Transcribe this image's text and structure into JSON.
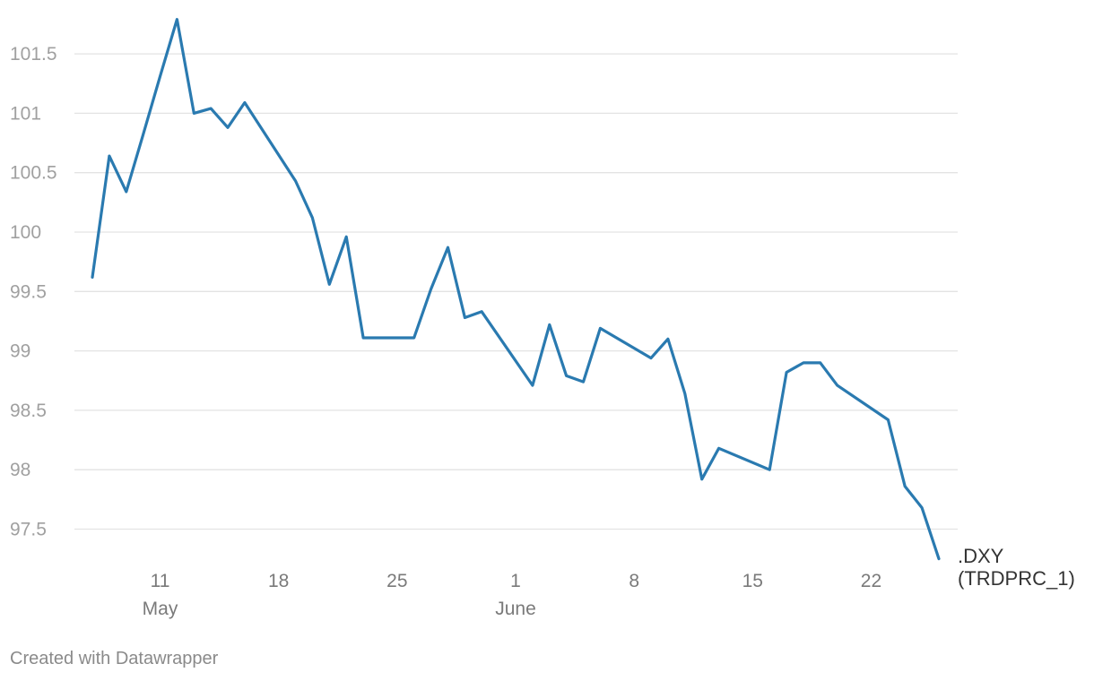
{
  "chart_data": {
    "type": "line",
    "title": "",
    "xlabel": "",
    "ylabel": "",
    "ylim": [
      97.3,
      101.8
    ],
    "grid": true,
    "y_ticks": [
      "97.5",
      "98",
      "98.5",
      "99",
      "99.5",
      "100",
      "100.5",
      "101",
      "101.5"
    ],
    "x_ticks": [
      {
        "day": "11",
        "month": "May",
        "date": "2020-05-11"
      },
      {
        "day": "18",
        "month": "",
        "date": "2020-05-18"
      },
      {
        "day": "25",
        "month": "",
        "date": "2020-05-25"
      },
      {
        "day": "1",
        "month": "June",
        "date": "2020-06-01"
      },
      {
        "day": "8",
        "month": "",
        "date": "2020-06-08"
      },
      {
        "day": "15",
        "month": "",
        "date": "2020-06-15"
      },
      {
        "day": "22",
        "month": "",
        "date": "2020-06-22"
      }
    ],
    "series": [
      {
        "name": ".DXY (TRDPRC_1)",
        "label_lines": [
          ".DXY",
          "(TRDPRC_1)"
        ],
        "color": "#2a7ab0",
        "points": [
          [
            "2020-05-07",
            99.62
          ],
          [
            "2020-05-08",
            100.64
          ],
          [
            "2020-05-09",
            100.34
          ],
          [
            "2020-05-10",
            100.82
          ],
          [
            "2020-05-11",
            101.31
          ],
          [
            "2020-05-12",
            101.79
          ],
          [
            "2020-05-13",
            101.0
          ],
          [
            "2020-05-14",
            101.04
          ],
          [
            "2020-05-15",
            100.88
          ],
          [
            "2020-05-16",
            101.09
          ],
          [
            "2020-05-19",
            100.43
          ],
          [
            "2020-05-20",
            100.12
          ],
          [
            "2020-05-21",
            99.56
          ],
          [
            "2020-05-22",
            99.96
          ],
          [
            "2020-05-23",
            99.11
          ],
          [
            "2020-05-26",
            99.11
          ],
          [
            "2020-05-27",
            99.52
          ],
          [
            "2020-05-28",
            99.87
          ],
          [
            "2020-05-29",
            99.28
          ],
          [
            "2020-05-30",
            99.33
          ],
          [
            "2020-06-02",
            98.71
          ],
          [
            "2020-06-03",
            99.22
          ],
          [
            "2020-06-04",
            98.79
          ],
          [
            "2020-06-05",
            98.74
          ],
          [
            "2020-06-06",
            99.19
          ],
          [
            "2020-06-09",
            98.94
          ],
          [
            "2020-06-10",
            99.1
          ],
          [
            "2020-06-11",
            98.64
          ],
          [
            "2020-06-12",
            97.92
          ],
          [
            "2020-06-13",
            98.18
          ],
          [
            "2020-06-16",
            98.0
          ],
          [
            "2020-06-17",
            98.82
          ],
          [
            "2020-06-18",
            98.9
          ],
          [
            "2020-06-19",
            98.9
          ],
          [
            "2020-06-20",
            98.71
          ],
          [
            "2020-06-23",
            98.42
          ],
          [
            "2020-06-24",
            97.86
          ],
          [
            "2020-06-25",
            97.68
          ],
          [
            "2020-06-26",
            97.25
          ]
        ]
      }
    ]
  },
  "footer": {
    "credit": "Created with Datawrapper"
  }
}
